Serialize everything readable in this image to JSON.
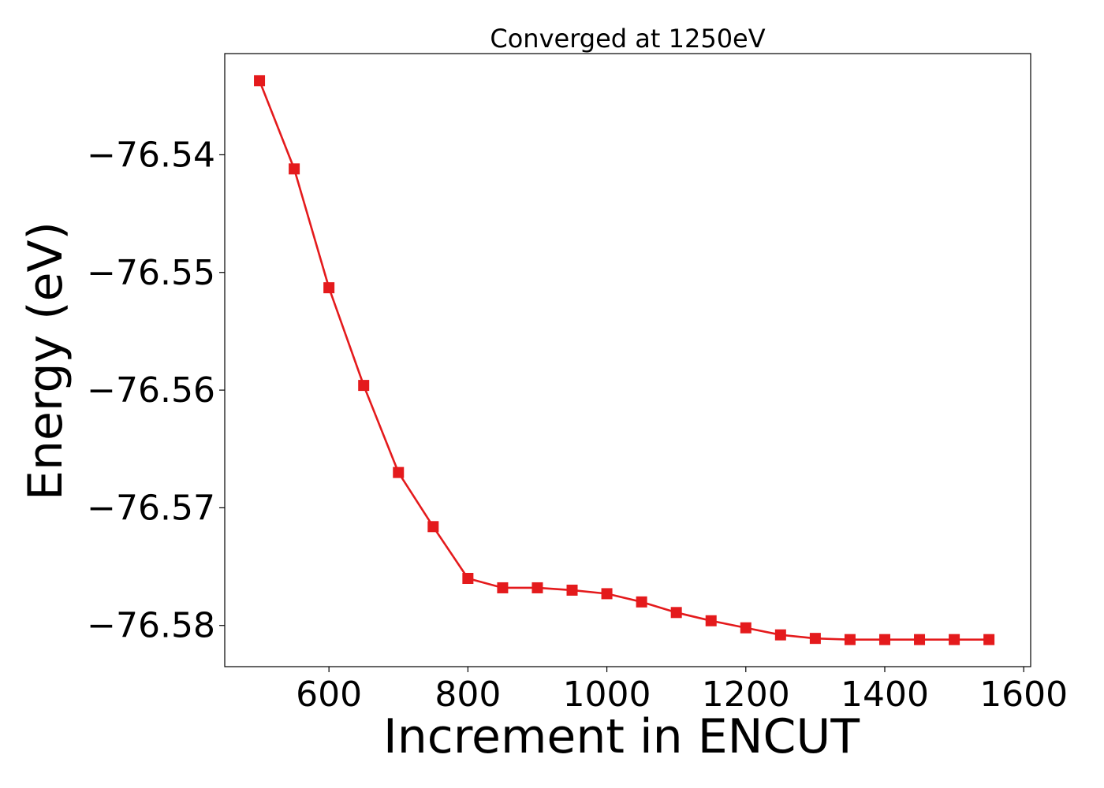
{
  "chart_data": {
    "type": "line",
    "title": "Converged at 1250eV",
    "xlabel": "Increment in ENCUT",
    "ylabel": "Energy (eV)",
    "xlim": [
      450,
      1610
    ],
    "ylim": [
      -76.5835,
      -76.5314
    ],
    "xticks": [
      600,
      800,
      1000,
      1200,
      1400,
      1600
    ],
    "yticks": [
      -76.54,
      -76.55,
      -76.56,
      -76.57,
      -76.58
    ],
    "ytick_labels": [
      "−76.54",
      "−76.55",
      "−76.56",
      "−76.57",
      "−76.58"
    ],
    "grid": false,
    "series": [
      {
        "color": "#e41a1c",
        "marker": "square",
        "x": [
          500,
          550,
          600,
          650,
          700,
          750,
          800,
          850,
          900,
          950,
          1000,
          1050,
          1100,
          1150,
          1200,
          1250,
          1300,
          1350,
          1400,
          1450,
          1500,
          1550
        ],
        "y": [
          -76.5337,
          -76.5412,
          -76.5513,
          -76.5596,
          -76.567,
          -76.5716,
          -76.576,
          -76.5768,
          -76.5768,
          -76.577,
          -76.5773,
          -76.578,
          -76.5789,
          -76.5796,
          -76.5802,
          -76.5808,
          -76.5811,
          -76.5812,
          -76.5812,
          -76.5812,
          -76.5812,
          -76.5812
        ]
      }
    ]
  }
}
